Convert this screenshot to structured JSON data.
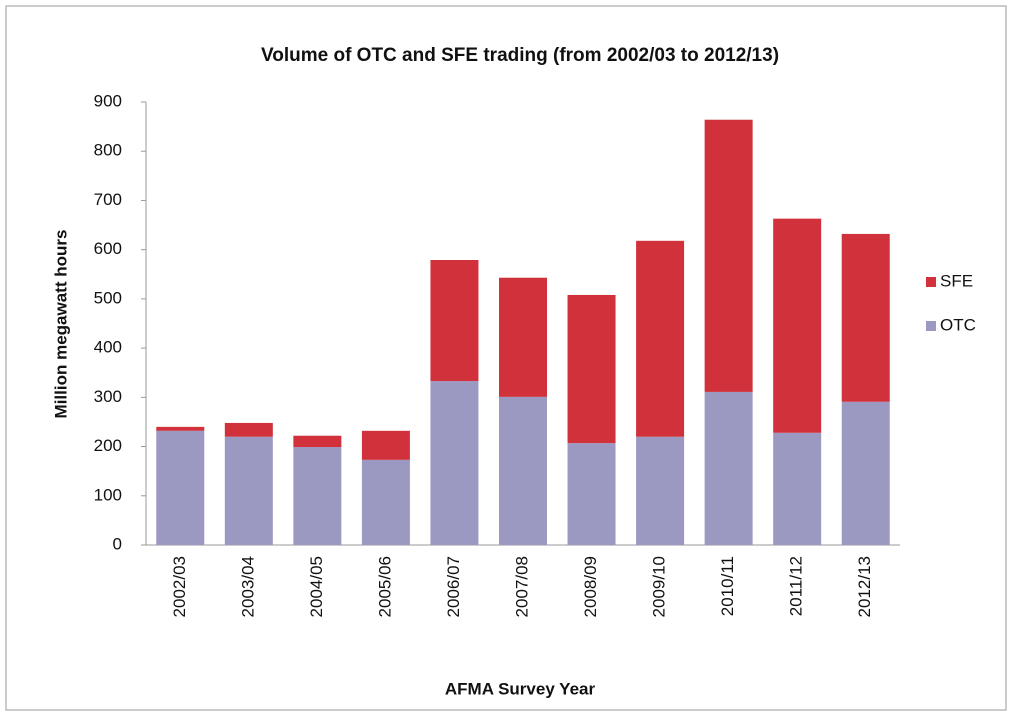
{
  "chart_data": {
    "type": "stacked_bar",
    "title": "Volume of OTC and SFE trading (from 2002/03 to 2012/13)",
    "x_label": "AFMA Survey Year",
    "y_label": "Million megawatt hours",
    "categories": [
      "2002/03",
      "2003/04",
      "2004/05",
      "2005/06",
      "2006/07",
      "2007/08",
      "2008/09",
      "2009/10",
      "2010/11",
      "2011/12",
      "2012/13"
    ],
    "series": [
      {
        "name": "OTC",
        "color": "#9b99c2",
        "values": [
          232,
          220,
          199,
          173,
          333,
          301,
          207,
          220,
          311,
          228,
          291
        ]
      },
      {
        "name": "SFE",
        "color": "#d0313a",
        "values": [
          8,
          28,
          23,
          59,
          246,
          242,
          301,
          398,
          553,
          435,
          341
        ]
      }
    ],
    "ylim": [
      0,
      900
    ],
    "yticks": [
      0,
      100,
      200,
      300,
      400,
      500,
      600,
      700,
      800,
      900
    ],
    "legend": "right"
  }
}
